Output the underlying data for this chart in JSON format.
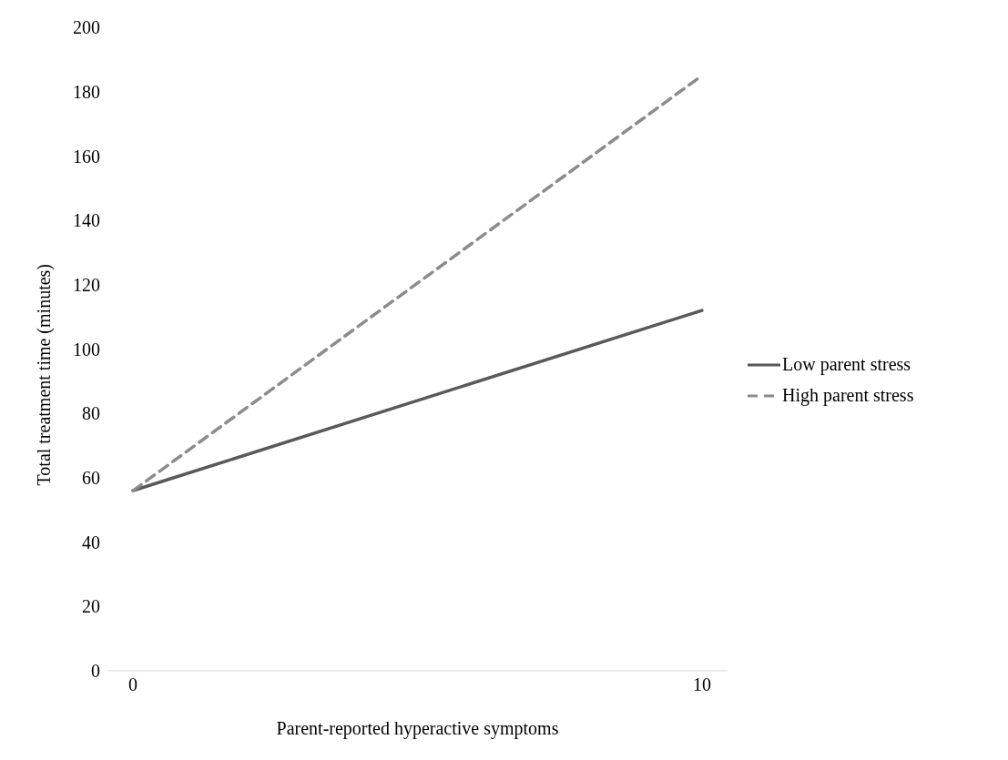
{
  "chart_data": {
    "type": "line",
    "xlabel": "Parent-reported hyperactive symptoms",
    "ylabel": "Total treatment time (minutes)",
    "x": [
      0,
      10
    ],
    "xlim": [
      -0.45,
      10.45
    ],
    "xticks": [
      0,
      10
    ],
    "series": [
      {
        "name": "Low parent stress",
        "color": "#595959",
        "values": [
          56,
          112
        ],
        "line_style": "solid"
      },
      {
        "name": "High parent stress",
        "color": "#8c8c8c",
        "values": [
          56,
          185
        ],
        "line_style": "dashed"
      }
    ],
    "ylim": [
      0,
      200
    ],
    "yticks": [
      0,
      20,
      40,
      60,
      80,
      100,
      120,
      140,
      160,
      180,
      200
    ],
    "grid": false,
    "legend": "right",
    "marker": "none"
  }
}
